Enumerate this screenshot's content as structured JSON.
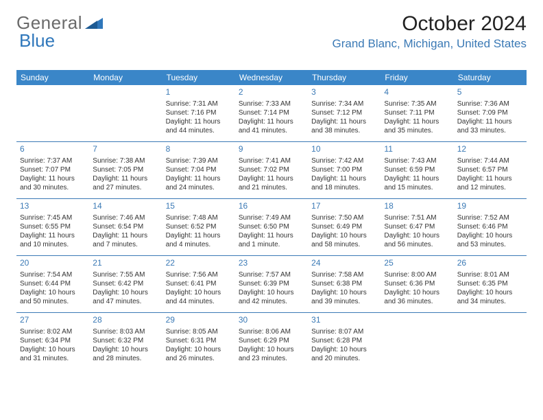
{
  "logo": {
    "general": "General",
    "blue": "Blue"
  },
  "title": "October 2024",
  "location": "Grand Blanc, Michigan, United States",
  "colors": {
    "header_bg": "#3a86c8",
    "accent": "#3a79b5",
    "logo_gray": "#6a6a6a",
    "logo_blue": "#2f77bb",
    "text": "#333333",
    "background": "#ffffff"
  },
  "dow": [
    "Sunday",
    "Monday",
    "Tuesday",
    "Wednesday",
    "Thursday",
    "Friday",
    "Saturday"
  ],
  "weeks": [
    [
      null,
      null,
      {
        "n": "1",
        "sr": "Sunrise: 7:31 AM",
        "ss": "Sunset: 7:16 PM",
        "dl": "Daylight: 11 hours and 44 minutes."
      },
      {
        "n": "2",
        "sr": "Sunrise: 7:33 AM",
        "ss": "Sunset: 7:14 PM",
        "dl": "Daylight: 11 hours and 41 minutes."
      },
      {
        "n": "3",
        "sr": "Sunrise: 7:34 AM",
        "ss": "Sunset: 7:12 PM",
        "dl": "Daylight: 11 hours and 38 minutes."
      },
      {
        "n": "4",
        "sr": "Sunrise: 7:35 AM",
        "ss": "Sunset: 7:11 PM",
        "dl": "Daylight: 11 hours and 35 minutes."
      },
      {
        "n": "5",
        "sr": "Sunrise: 7:36 AM",
        "ss": "Sunset: 7:09 PM",
        "dl": "Daylight: 11 hours and 33 minutes."
      }
    ],
    [
      {
        "n": "6",
        "sr": "Sunrise: 7:37 AM",
        "ss": "Sunset: 7:07 PM",
        "dl": "Daylight: 11 hours and 30 minutes."
      },
      {
        "n": "7",
        "sr": "Sunrise: 7:38 AM",
        "ss": "Sunset: 7:05 PM",
        "dl": "Daylight: 11 hours and 27 minutes."
      },
      {
        "n": "8",
        "sr": "Sunrise: 7:39 AM",
        "ss": "Sunset: 7:04 PM",
        "dl": "Daylight: 11 hours and 24 minutes."
      },
      {
        "n": "9",
        "sr": "Sunrise: 7:41 AM",
        "ss": "Sunset: 7:02 PM",
        "dl": "Daylight: 11 hours and 21 minutes."
      },
      {
        "n": "10",
        "sr": "Sunrise: 7:42 AM",
        "ss": "Sunset: 7:00 PM",
        "dl": "Daylight: 11 hours and 18 minutes."
      },
      {
        "n": "11",
        "sr": "Sunrise: 7:43 AM",
        "ss": "Sunset: 6:59 PM",
        "dl": "Daylight: 11 hours and 15 minutes."
      },
      {
        "n": "12",
        "sr": "Sunrise: 7:44 AM",
        "ss": "Sunset: 6:57 PM",
        "dl": "Daylight: 11 hours and 12 minutes."
      }
    ],
    [
      {
        "n": "13",
        "sr": "Sunrise: 7:45 AM",
        "ss": "Sunset: 6:55 PM",
        "dl": "Daylight: 11 hours and 10 minutes."
      },
      {
        "n": "14",
        "sr": "Sunrise: 7:46 AM",
        "ss": "Sunset: 6:54 PM",
        "dl": "Daylight: 11 hours and 7 minutes."
      },
      {
        "n": "15",
        "sr": "Sunrise: 7:48 AM",
        "ss": "Sunset: 6:52 PM",
        "dl": "Daylight: 11 hours and 4 minutes."
      },
      {
        "n": "16",
        "sr": "Sunrise: 7:49 AM",
        "ss": "Sunset: 6:50 PM",
        "dl": "Daylight: 11 hours and 1 minute."
      },
      {
        "n": "17",
        "sr": "Sunrise: 7:50 AM",
        "ss": "Sunset: 6:49 PM",
        "dl": "Daylight: 10 hours and 58 minutes."
      },
      {
        "n": "18",
        "sr": "Sunrise: 7:51 AM",
        "ss": "Sunset: 6:47 PM",
        "dl": "Daylight: 10 hours and 56 minutes."
      },
      {
        "n": "19",
        "sr": "Sunrise: 7:52 AM",
        "ss": "Sunset: 6:46 PM",
        "dl": "Daylight: 10 hours and 53 minutes."
      }
    ],
    [
      {
        "n": "20",
        "sr": "Sunrise: 7:54 AM",
        "ss": "Sunset: 6:44 PM",
        "dl": "Daylight: 10 hours and 50 minutes."
      },
      {
        "n": "21",
        "sr": "Sunrise: 7:55 AM",
        "ss": "Sunset: 6:42 PM",
        "dl": "Daylight: 10 hours and 47 minutes."
      },
      {
        "n": "22",
        "sr": "Sunrise: 7:56 AM",
        "ss": "Sunset: 6:41 PM",
        "dl": "Daylight: 10 hours and 44 minutes."
      },
      {
        "n": "23",
        "sr": "Sunrise: 7:57 AM",
        "ss": "Sunset: 6:39 PM",
        "dl": "Daylight: 10 hours and 42 minutes."
      },
      {
        "n": "24",
        "sr": "Sunrise: 7:58 AM",
        "ss": "Sunset: 6:38 PM",
        "dl": "Daylight: 10 hours and 39 minutes."
      },
      {
        "n": "25",
        "sr": "Sunrise: 8:00 AM",
        "ss": "Sunset: 6:36 PM",
        "dl": "Daylight: 10 hours and 36 minutes."
      },
      {
        "n": "26",
        "sr": "Sunrise: 8:01 AM",
        "ss": "Sunset: 6:35 PM",
        "dl": "Daylight: 10 hours and 34 minutes."
      }
    ],
    [
      {
        "n": "27",
        "sr": "Sunrise: 8:02 AM",
        "ss": "Sunset: 6:34 PM",
        "dl": "Daylight: 10 hours and 31 minutes."
      },
      {
        "n": "28",
        "sr": "Sunrise: 8:03 AM",
        "ss": "Sunset: 6:32 PM",
        "dl": "Daylight: 10 hours and 28 minutes."
      },
      {
        "n": "29",
        "sr": "Sunrise: 8:05 AM",
        "ss": "Sunset: 6:31 PM",
        "dl": "Daylight: 10 hours and 26 minutes."
      },
      {
        "n": "30",
        "sr": "Sunrise: 8:06 AM",
        "ss": "Sunset: 6:29 PM",
        "dl": "Daylight: 10 hours and 23 minutes."
      },
      {
        "n": "31",
        "sr": "Sunrise: 8:07 AM",
        "ss": "Sunset: 6:28 PM",
        "dl": "Daylight: 10 hours and 20 minutes."
      },
      null,
      null
    ]
  ]
}
